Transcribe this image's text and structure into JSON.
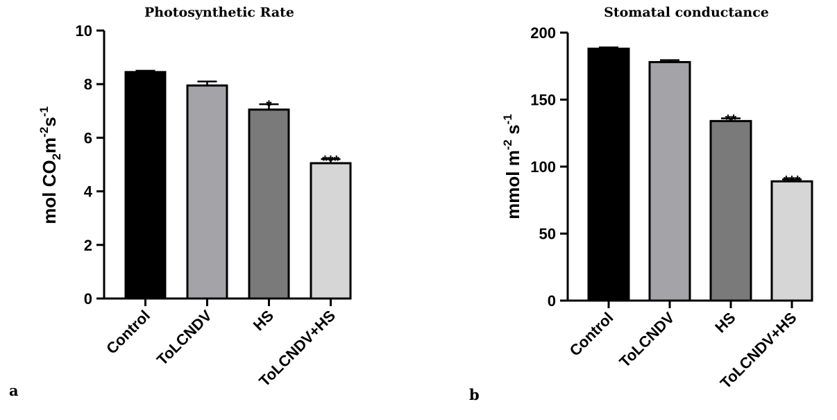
{
  "chart_data": [
    {
      "type": "bar",
      "panel_label": "a",
      "title": "Photosynthetic Rate",
      "ylabel": {
        "p1": "mol CO",
        "s1": "2",
        "p2": "m",
        "s2": "-2",
        "p3": "s",
        "s3": "-1"
      },
      "categories": [
        "Control",
        "ToLCNDV",
        "HS",
        "ToLCNDV+HS"
      ],
      "values": [
        8.45,
        7.95,
        7.05,
        5.05
      ],
      "errors": [
        0.05,
        0.15,
        0.2,
        0.15
      ],
      "significance": [
        "",
        "",
        "*",
        "***"
      ],
      "colors": [
        "#000000",
        "#a3a3a8",
        "#7a7a7a",
        "#d6d6d6"
      ],
      "ylim": [
        0,
        10
      ],
      "yticks": [
        0,
        2,
        4,
        6,
        8,
        10
      ]
    },
    {
      "type": "bar",
      "panel_label": "b",
      "title": "Stomatal conductance",
      "ylabel": {
        "p1": "mmol m",
        "s1": "-2",
        "p2": " s",
        "s2": "-1"
      },
      "categories": [
        "Control",
        "ToLCNDV",
        "HS",
        "ToLCNDV+HS"
      ],
      "values": [
        188,
        178,
        134,
        89
      ],
      "errors": [
        1,
        1.5,
        2,
        1.5
      ],
      "significance": [
        "",
        "",
        "**",
        "***"
      ],
      "colors": [
        "#000000",
        "#a3a3a8",
        "#7a7a7a",
        "#d6d6d6"
      ],
      "ylim": [
        0,
        200
      ],
      "yticks": [
        0,
        50,
        100,
        150,
        200
      ]
    }
  ]
}
